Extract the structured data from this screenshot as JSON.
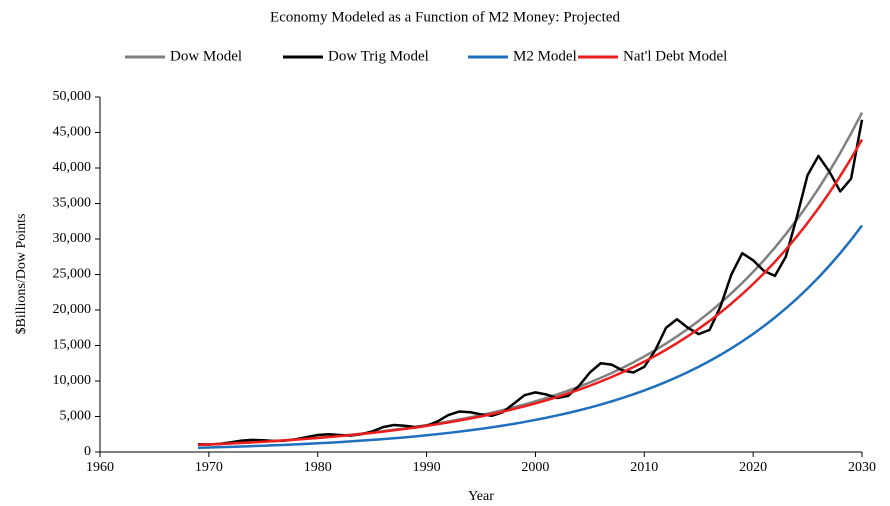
{
  "chart_data": {
    "type": "line",
    "title": "Economy Modeled as a Function of M2 Money: Projected",
    "xlabel": "Year",
    "ylabel": "$Billions/Dow Points",
    "x": [
      1969,
      1970,
      1971,
      1972,
      1973,
      1974,
      1975,
      1976,
      1977,
      1978,
      1979,
      1980,
      1981,
      1982,
      1983,
      1984,
      1985,
      1986,
      1987,
      1988,
      1989,
      1990,
      1991,
      1992,
      1993,
      1994,
      1995,
      1996,
      1997,
      1998,
      1999,
      2000,
      2001,
      2002,
      2003,
      2004,
      2005,
      2006,
      2007,
      2008,
      2009,
      2010,
      2011,
      2012,
      2013,
      2014,
      2015,
      2016,
      2017,
      2018,
      2019,
      2020,
      2021,
      2022,
      2023,
      2024,
      2025,
      2026,
      2027,
      2028,
      2029,
      2030
    ],
    "series": [
      {
        "name": "Dow Model",
        "color": "#808080",
        "values": [
          1000,
          1065,
          1135,
          1209,
          1289,
          1373,
          1463,
          1559,
          1661,
          1769,
          1885,
          2009,
          2140,
          2280,
          2429,
          2588,
          2758,
          2938,
          3131,
          3336,
          3554,
          3787,
          4035,
          4299,
          4580,
          4880,
          5199,
          5540,
          5902,
          6288,
          6700,
          7139,
          7606,
          8104,
          8634,
          9199,
          9801,
          10443,
          11126,
          11854,
          12630,
          13457,
          14338,
          15276,
          16276,
          17341,
          18476,
          19685,
          20973,
          22346,
          23808,
          25366,
          27026,
          28795,
          30679,
          32687,
          34826,
          37105,
          39533,
          42120,
          44877,
          47813
        ]
      },
      {
        "name": "Dow Trig Model",
        "color": "#000000",
        "values": [
          1100,
          1050,
          1150,
          1350,
          1600,
          1700,
          1650,
          1550,
          1600,
          1800,
          2100,
          2400,
          2500,
          2400,
          2300,
          2500,
          2900,
          3500,
          3800,
          3700,
          3500,
          3700,
          4300,
          5200,
          5700,
          5600,
          5300,
          5100,
          5600,
          6800,
          8000,
          8400,
          8100,
          7600,
          7900,
          9300,
          11200,
          12500,
          12300,
          11500,
          11200,
          12000,
          14300,
          17500,
          18700,
          17500,
          16600,
          17200,
          20500,
          25000,
          28000,
          27000,
          25500,
          24800,
          27500,
          33000,
          39000,
          41700,
          39500,
          36700,
          38500,
          46800
        ]
      },
      {
        "name": "M2 Model",
        "color": "#1f6fbf",
        "values": [
          600,
          640,
          683,
          729,
          778,
          831,
          887,
          947,
          1010,
          1078,
          1151,
          1228,
          1311,
          1399,
          1493,
          1594,
          1701,
          1816,
          1938,
          2068,
          2208,
          2356,
          2515,
          2684,
          2865,
          3058,
          3264,
          3483,
          3718,
          3968,
          4235,
          4520,
          4824,
          5149,
          5495,
          5865,
          6260,
          6681,
          7131,
          7611,
          8123,
          8670,
          9253,
          9876,
          10541,
          11250,
          12007,
          12815,
          13678,
          14598,
          15580,
          16629,
          17748,
          18942,
          20217,
          21577,
          23029,
          24579,
          26233,
          27998,
          29883,
          31894
        ]
      },
      {
        "name": "Nat'l Debt Model",
        "color": "#ee1c1c",
        "values": [
          1000,
          1064,
          1132,
          1205,
          1282,
          1364,
          1451,
          1544,
          1643,
          1748,
          1860,
          1979,
          2105,
          2240,
          2383,
          2536,
          2698,
          2871,
          3054,
          3250,
          3458,
          3679,
          3915,
          4165,
          4432,
          4715,
          5017,
          5338,
          5680,
          6043,
          6430,
          6842,
          7280,
          7745,
          8241,
          8769,
          9330,
          9927,
          10562,
          11238,
          11958,
          12723,
          13537,
          14404,
          15325,
          16306,
          17350,
          18460,
          19642,
          20899,
          22236,
          23659,
          25174,
          26785,
          28499,
          30323,
          32264,
          34328,
          36525,
          38863,
          41350,
          43996
        ]
      }
    ],
    "xlim": [
      1960,
      2030
    ],
    "xticks": [
      1960,
      1970,
      1980,
      1990,
      2000,
      2010,
      2020,
      2030
    ],
    "ylim": [
      0,
      50000
    ],
    "yticks": [
      0,
      {
        "value": 5000,
        "label": "5,000"
      },
      {
        "value": 10000,
        "label": "10,000"
      },
      {
        "value": 15000,
        "label": "15,000"
      },
      {
        "value": 20000,
        "label": "20,000"
      },
      {
        "value": 25000,
        "label": "25,000"
      },
      {
        "value": 30000,
        "label": "30,000"
      },
      {
        "value": 35000,
        "label": "35,000"
      },
      {
        "value": 40000,
        "label": "40,000"
      },
      {
        "value": 45000,
        "label": "45,000"
      },
      {
        "value": 50000,
        "label": "50,000"
      }
    ],
    "legend": "top",
    "grid": false
  }
}
